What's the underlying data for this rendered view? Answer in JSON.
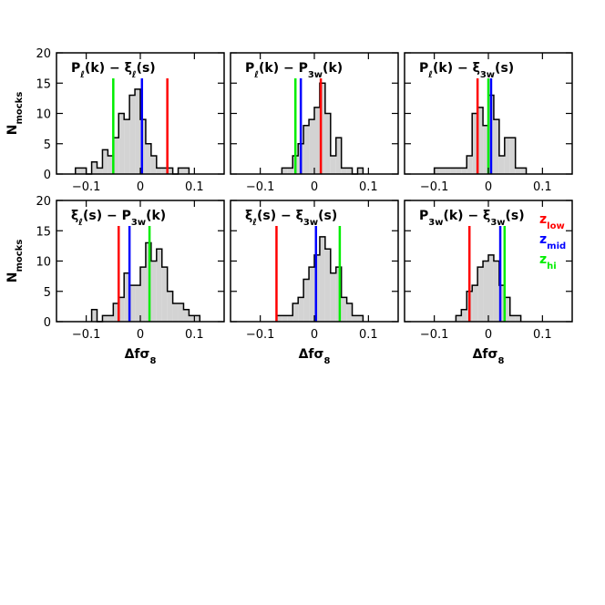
{
  "chart_data": [
    {
      "type": "histogram",
      "title": [
        "P",
        "ℓ",
        "(k) − ξ",
        "ℓ",
        "(s)"
      ],
      "ylabel": [
        "N",
        "mocks"
      ],
      "bins": [
        -0.12,
        -0.11,
        -0.1,
        -0.09,
        -0.08,
        -0.07,
        -0.06,
        -0.05,
        -0.04,
        -0.03,
        -0.02,
        -0.01,
        0,
        0.01,
        0.02,
        0.03,
        0.04,
        0.05,
        0.06,
        0.07,
        0.08,
        0.09
      ],
      "counts": [
        1,
        1,
        0,
        2,
        1,
        4,
        3,
        6,
        10,
        9,
        13,
        14,
        9,
        5,
        3,
        1,
        1,
        1,
        0,
        1,
        1
      ],
      "color": "#d3d3d3",
      "series": [
        {
          "color": "#00ee00",
          "values": [
            -0.05
          ]
        },
        {
          "color": "#0000ff",
          "values": [
            0.003
          ]
        },
        {
          "color": "#ff0000",
          "values": [
            0.05
          ]
        }
      ],
      "xlim": [
        -0.155,
        0.155
      ],
      "ylim": [
        0,
        20
      ],
      "yticks": [
        0,
        5,
        10,
        15,
        20
      ],
      "xticks": [
        {
          "value": -0.1,
          "label": "−0.1"
        },
        0,
        0.1
      ]
    },
    {
      "type": "histogram",
      "title": [
        "P",
        "ℓ",
        "(k) − P",
        "3w",
        "(k)"
      ],
      "bins": [
        -0.06,
        -0.05,
        -0.04,
        -0.03,
        -0.02,
        -0.01,
        0,
        0.01,
        0.02,
        0.03,
        0.04,
        0.05,
        0.06,
        0.07,
        0.08,
        0.09
      ],
      "counts": [
        1,
        1,
        3,
        5,
        8,
        9,
        11,
        15,
        10,
        3,
        6,
        1,
        1,
        0,
        1
      ],
      "color": "#d3d3d3",
      "series": [
        {
          "color": "#00ee00",
          "values": [
            -0.035
          ]
        },
        {
          "color": "#0000ff",
          "values": [
            -0.025
          ]
        },
        {
          "color": "#ff0000",
          "values": [
            0.012
          ]
        }
      ],
      "xlim": [
        -0.155,
        0.155
      ],
      "ylim": [
        0,
        20
      ],
      "yticks": [
        0,
        5,
        10,
        15,
        20
      ],
      "xticks": [
        {
          "value": -0.1,
          "label": "−0.1"
        },
        0,
        0.1
      ]
    },
    {
      "type": "histogram",
      "title": [
        "P",
        "ℓ",
        "(k) − ξ",
        "3w",
        "(s)"
      ],
      "bins": [
        -0.1,
        -0.09,
        -0.08,
        -0.07,
        -0.06,
        -0.05,
        -0.04,
        -0.03,
        -0.02,
        -0.01,
        0,
        0.01,
        0.02,
        0.03,
        0.04,
        0.05,
        0.06,
        0.07
      ],
      "counts": [
        1,
        1,
        1,
        1,
        1,
        1,
        3,
        10,
        11,
        8,
        13,
        9,
        3,
        6,
        6,
        1,
        1
      ],
      "color": "#d3d3d3",
      "series": [
        {
          "color": "#ff0000",
          "values": [
            -0.02
          ]
        },
        {
          "color": "#00ee00",
          "values": [
            0
          ]
        },
        {
          "color": "#0000ff",
          "values": [
            0.005
          ]
        }
      ],
      "xlim": [
        -0.155,
        0.155
      ],
      "ylim": [
        0,
        20
      ],
      "yticks": [
        0,
        5,
        10,
        15,
        20
      ],
      "xticks": [
        {
          "value": -0.1,
          "label": "−0.1"
        },
        0,
        0.1
      ]
    },
    {
      "type": "histogram",
      "title": [
        "ξ",
        "ℓ",
        "(s) − P",
        "3w",
        "(k)"
      ],
      "ylabel": [
        "N",
        "mocks"
      ],
      "xlabel": [
        "Δfσ",
        "8"
      ],
      "bins": [
        -0.09,
        -0.08,
        -0.07,
        -0.06,
        -0.05,
        -0.04,
        -0.03,
        -0.02,
        -0.01,
        0,
        0.01,
        0.02,
        0.03,
        0.04,
        0.05,
        0.06,
        0.07,
        0.08,
        0.09,
        0.1,
        0.11
      ],
      "counts": [
        2,
        0,
        1,
        1,
        3,
        4,
        8,
        6,
        6,
        9,
        13,
        10,
        12,
        9,
        5,
        3,
        3,
        2,
        1,
        1
      ],
      "color": "#d3d3d3",
      "series": [
        {
          "color": "#ff0000",
          "values": [
            -0.04
          ]
        },
        {
          "color": "#0000ff",
          "values": [
            -0.02
          ]
        },
        {
          "color": "#00ee00",
          "values": [
            0.017
          ]
        }
      ],
      "xlim": [
        -0.155,
        0.155
      ],
      "ylim": [
        0,
        20
      ],
      "yticks": [
        0,
        5,
        10,
        15,
        20
      ],
      "xticks": [
        {
          "value": -0.1,
          "label": "−0.1"
        },
        0,
        0.1
      ]
    },
    {
      "type": "histogram",
      "title": [
        "ξ",
        "ℓ",
        "(s) − ξ",
        "3w",
        "(s)"
      ],
      "xlabel": [
        "Δfσ",
        "8"
      ],
      "bins": [
        -0.07,
        -0.06,
        -0.05,
        -0.04,
        -0.03,
        -0.02,
        -0.01,
        0,
        0.01,
        0.02,
        0.03,
        0.04,
        0.05,
        0.06,
        0.07,
        0.08,
        0.09
      ],
      "counts": [
        1,
        1,
        1,
        3,
        4,
        7,
        9,
        11,
        14,
        12,
        8,
        9,
        4,
        3,
        1,
        1
      ],
      "color": "#d3d3d3",
      "series": [
        {
          "color": "#ff0000",
          "values": [
            -0.07
          ]
        },
        {
          "color": "#0000ff",
          "values": [
            0.003
          ]
        },
        {
          "color": "#00ee00",
          "values": [
            0.047
          ]
        }
      ],
      "xlim": [
        -0.155,
        0.155
      ],
      "ylim": [
        0,
        20
      ],
      "yticks": [
        0,
        5,
        10,
        15,
        20
      ],
      "xticks": [
        {
          "value": -0.1,
          "label": "−0.1"
        },
        0,
        0.1
      ]
    },
    {
      "type": "histogram",
      "title": [
        "P",
        "3w",
        "(k) − ξ",
        "3w",
        "(s)"
      ],
      "xlabel": [
        "Δfσ",
        "8"
      ],
      "bins": [
        -0.06,
        -0.05,
        -0.04,
        -0.03,
        -0.02,
        -0.01,
        0,
        0.01,
        0.02,
        0.03,
        0.04,
        0.05,
        0.06
      ],
      "counts": [
        1,
        2,
        5,
        6,
        9,
        10,
        11,
        10,
        6,
        4,
        1,
        1
      ],
      "color": "#d3d3d3",
      "series": [
        {
          "name": [
            "z",
            "low"
          ],
          "color": "#ff0000",
          "values": [
            -0.035
          ]
        },
        {
          "name": [
            "z",
            "mid"
          ],
          "color": "#0000ff",
          "values": [
            0.022
          ]
        },
        {
          "name": [
            "z",
            "hi"
          ],
          "color": "#00ee00",
          "values": [
            0.03
          ]
        }
      ],
      "xlim": [
        -0.155,
        0.155
      ],
      "ylim": [
        0,
        20
      ],
      "yticks": [
        0,
        5,
        10,
        15,
        20
      ],
      "xticks": [
        {
          "value": -0.1,
          "label": "−0.1"
        },
        0,
        0.1
      ]
    }
  ]
}
